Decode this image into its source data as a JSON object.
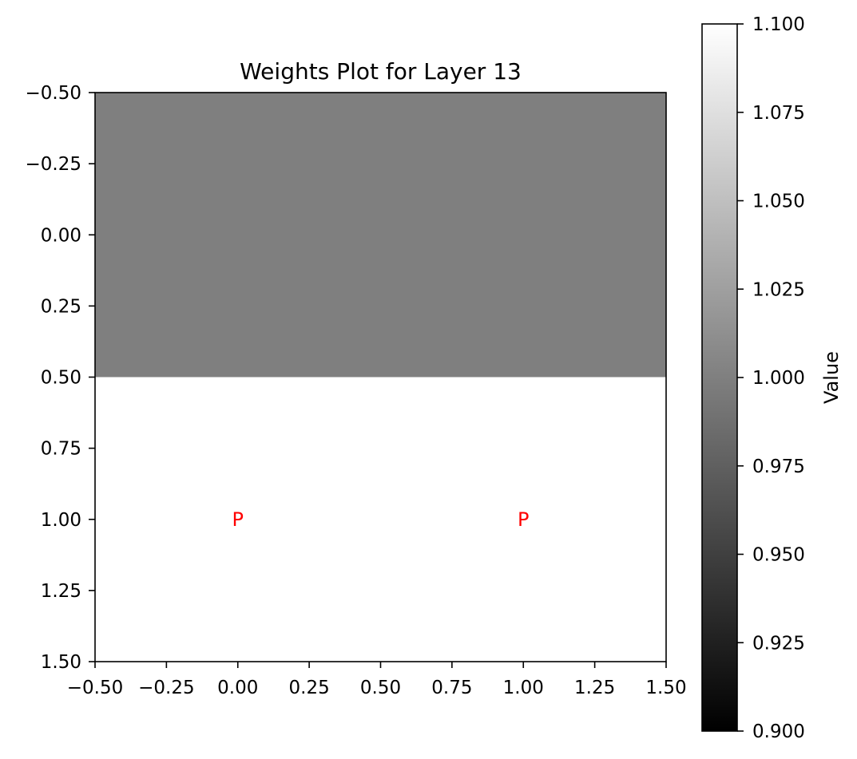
{
  "chart_data": {
    "type": "heatmap",
    "title": "Weights Plot for Layer 13",
    "xlabel": "",
    "ylabel": "",
    "xlim": [
      -0.5,
      1.5
    ],
    "ylim": [
      1.5,
      -0.5
    ],
    "y_inverted": true,
    "grid": false,
    "x_ticks": [
      "−0.50",
      "−0.25",
      "0.00",
      "0.25",
      "0.50",
      "0.75",
      "1.00",
      "1.25",
      "1.50"
    ],
    "x_tick_values": [
      -0.5,
      -0.25,
      0,
      0.25,
      0.5,
      0.75,
      1.0,
      1.25,
      1.5
    ],
    "y_ticks": [
      "−0.50",
      "−0.25",
      "0.00",
      "0.25",
      "0.50",
      "0.75",
      "1.00",
      "1.25",
      "1.50"
    ],
    "y_tick_values": [
      -0.5,
      -0.25,
      0,
      0.25,
      0.5,
      0.75,
      1.0,
      1.25,
      1.5
    ],
    "matrix": [
      [
        1.0,
        1.0
      ],
      [
        1.1,
        1.1
      ]
    ],
    "annotations": [
      {
        "row": 1,
        "col": 0,
        "text": "P",
        "color": "#ff0000"
      },
      {
        "row": 1,
        "col": 1,
        "text": "P",
        "color": "#ff0000"
      }
    ],
    "colormap": "gray",
    "colorbar": {
      "label": "Value",
      "range": [
        0.9,
        1.1
      ],
      "ticks": [
        "0.900",
        "0.925",
        "0.950",
        "0.975",
        "1.000",
        "1.025",
        "1.050",
        "1.075",
        "1.100"
      ],
      "tick_values": [
        0.9,
        0.925,
        0.95,
        0.975,
        1.0,
        1.025,
        1.05,
        1.075,
        1.1
      ]
    }
  }
}
